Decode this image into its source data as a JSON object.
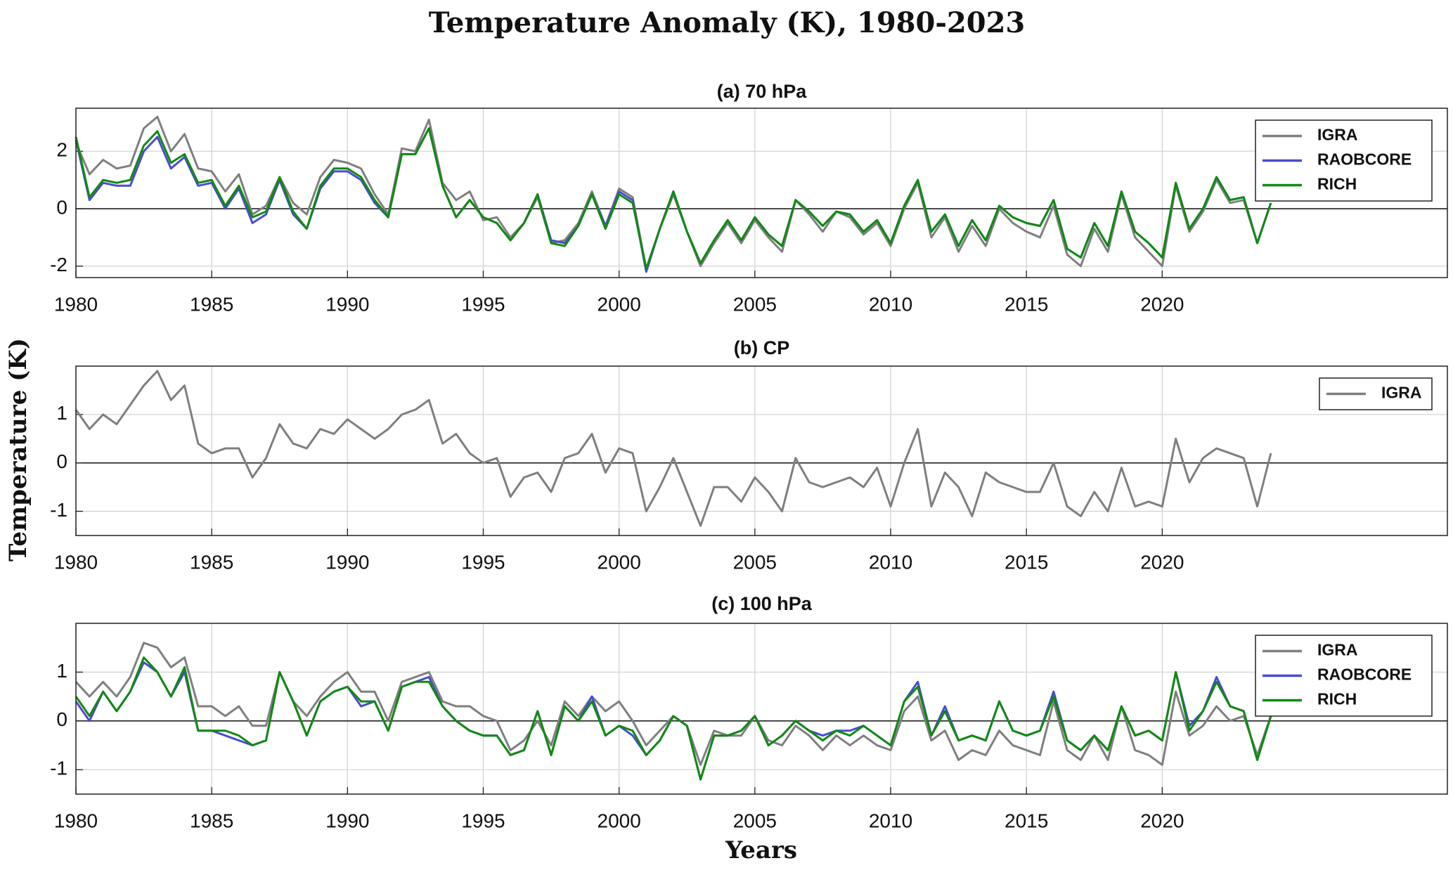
{
  "figure": {
    "title": "Temperature Anomaly (K), 1980-2023",
    "ylabel": "Temperature (K)",
    "xlabel": "Years"
  },
  "chart_data": [
    {
      "type": "line",
      "title": "(a) 70 hPa",
      "grid": true,
      "zero_line": true,
      "legend": "upper right",
      "xlim": [
        1980,
        2030.5
      ],
      "xticks": [
        1980,
        1985,
        1990,
        1995,
        2000,
        2005,
        2010,
        2015,
        2020
      ],
      "ylim": [
        -2.4,
        3.5
      ],
      "yticks": [
        -2,
        0,
        2
      ],
      "x": [
        1980,
        1980.5,
        1981,
        1981.5,
        1982,
        1982.5,
        1983,
        1983.5,
        1984,
        1984.5,
        1985,
        1985.5,
        1986,
        1986.5,
        1987,
        1987.5,
        1988,
        1988.5,
        1989,
        1989.5,
        1990,
        1990.5,
        1991,
        1991.5,
        1992,
        1992.5,
        1993,
        1993.5,
        1994,
        1994.5,
        1995,
        1995.5,
        1996,
        1996.5,
        1997,
        1997.5,
        1998,
        1998.5,
        1999,
        1999.5,
        2000,
        2000.5,
        2001,
        2001.5,
        2002,
        2002.5,
        2003,
        2003.5,
        2004,
        2004.5,
        2005,
        2005.5,
        2006,
        2006.5,
        2007,
        2007.5,
        2008,
        2008.5,
        2009,
        2009.5,
        2010,
        2010.5,
        2011,
        2011.5,
        2012,
        2012.5,
        2013,
        2013.5,
        2014,
        2014.5,
        2015,
        2015.5,
        2016,
        2016.5,
        2017,
        2017.5,
        2018,
        2018.5,
        2019,
        2019.5,
        2020,
        2020.5,
        2021,
        2021.5,
        2022,
        2022.5,
        2023,
        2023.5,
        2024
      ],
      "series": [
        {
          "name": "IGRA",
          "color": "#7f7f7f",
          "values": [
            2.3,
            1.2,
            1.7,
            1.4,
            1.5,
            2.8,
            3.2,
            2.0,
            2.6,
            1.4,
            1.3,
            0.6,
            1.2,
            -0.2,
            0.1,
            1.1,
            0.2,
            -0.2,
            1.1,
            1.7,
            1.6,
            1.4,
            0.5,
            -0.2,
            2.1,
            2.0,
            3.1,
            0.9,
            0.3,
            0.6,
            -0.4,
            -0.3,
            -1.0,
            -0.5,
            0.4,
            -1.2,
            -1.1,
            -0.5,
            0.6,
            -0.6,
            0.7,
            0.4,
            -2.1,
            -0.7,
            0.5,
            -0.8,
            -2.0,
            -1.2,
            -0.5,
            -1.2,
            -0.4,
            -1.0,
            -1.5,
            0.3,
            -0.2,
            -0.8,
            -0.1,
            -0.3,
            -0.9,
            -0.5,
            -1.3,
            0.0,
            0.9,
            -1.0,
            -0.3,
            -1.5,
            -0.6,
            -1.3,
            0.0,
            -0.5,
            -0.8,
            -1.0,
            0.1,
            -1.6,
            -2.0,
            -0.7,
            -1.5,
            0.5,
            -1.0,
            -1.5,
            -2.0,
            0.8,
            -0.8,
            -0.1,
            1.0,
            0.2,
            0.3,
            -1.2,
            0.2
          ]
        },
        {
          "name": "RAOBCORE",
          "color": "#4b4bcf",
          "values": [
            2.4,
            0.3,
            0.9,
            0.8,
            0.8,
            2.0,
            2.5,
            1.4,
            1.8,
            0.8,
            0.9,
            0.0,
            0.7,
            -0.5,
            -0.2,
            1.0,
            -0.2,
            -0.7,
            0.7,
            1.3,
            1.3,
            1.0,
            0.2,
            -0.3,
            1.9,
            1.9,
            2.8,
            0.8,
            -0.3,
            0.3,
            -0.3,
            -0.5,
            -1.1,
            -0.5,
            0.5,
            -1.1,
            -1.2,
            -0.6,
            0.5,
            -0.6,
            0.6,
            0.3,
            -2.2,
            -0.7,
            0.6,
            -0.8,
            -1.9,
            -1.1,
            -0.4,
            -1.1,
            -0.3,
            -0.9,
            -1.3,
            0.3,
            -0.1,
            -0.6,
            -0.1,
            -0.2,
            -0.8,
            -0.4,
            -1.2,
            0.1,
            1.0,
            -0.8,
            -0.2,
            -1.3,
            -0.4,
            -1.1,
            0.1,
            -0.3,
            -0.5,
            -0.6,
            0.3,
            -1.4,
            -1.7,
            -0.5,
            -1.3,
            0.6,
            -0.8,
            -1.2,
            -1.7,
            0.9,
            -0.7,
            0.0,
            1.1,
            0.3,
            0.4,
            -1.2,
            0.2
          ]
        },
        {
          "name": "RICH",
          "color": "#118a11",
          "values": [
            2.5,
            0.4,
            1.0,
            0.9,
            1.0,
            2.2,
            2.7,
            1.6,
            1.9,
            0.9,
            1.0,
            0.1,
            0.8,
            -0.3,
            -0.1,
            1.1,
            -0.1,
            -0.7,
            0.8,
            1.4,
            1.4,
            1.1,
            0.3,
            -0.3,
            1.9,
            1.9,
            2.8,
            0.8,
            -0.3,
            0.3,
            -0.3,
            -0.5,
            -1.1,
            -0.5,
            0.5,
            -1.2,
            -1.3,
            -0.6,
            0.5,
            -0.7,
            0.5,
            0.2,
            -2.1,
            -0.7,
            0.6,
            -0.8,
            -1.9,
            -1.1,
            -0.4,
            -1.1,
            -0.3,
            -0.9,
            -1.3,
            0.3,
            -0.1,
            -0.6,
            -0.1,
            -0.2,
            -0.8,
            -0.4,
            -1.2,
            0.1,
            1.0,
            -0.8,
            -0.2,
            -1.3,
            -0.4,
            -1.1,
            0.1,
            -0.3,
            -0.5,
            -0.6,
            0.3,
            -1.4,
            -1.7,
            -0.5,
            -1.3,
            0.6,
            -0.8,
            -1.2,
            -1.7,
            0.9,
            -0.7,
            0.0,
            1.1,
            0.3,
            0.4,
            -1.2,
            0.2
          ]
        }
      ]
    },
    {
      "type": "line",
      "title": "(b) CP",
      "grid": true,
      "zero_line": true,
      "legend": "upper right",
      "xlim": [
        1980,
        2030.5
      ],
      "xticks": [
        1980,
        1985,
        1990,
        1995,
        2000,
        2005,
        2010,
        2015,
        2020
      ],
      "ylim": [
        -1.5,
        2
      ],
      "yticks": [
        -1,
        0,
        1
      ],
      "x": [
        1980,
        1980.5,
        1981,
        1981.5,
        1982,
        1982.5,
        1983,
        1983.5,
        1984,
        1984.5,
        1985,
        1985.5,
        1986,
        1986.5,
        1987,
        1987.5,
        1988,
        1988.5,
        1989,
        1989.5,
        1990,
        1990.5,
        1991,
        1991.5,
        1992,
        1992.5,
        1993,
        1993.5,
        1994,
        1994.5,
        1995,
        1995.5,
        1996,
        1996.5,
        1997,
        1997.5,
        1998,
        1998.5,
        1999,
        1999.5,
        2000,
        2000.5,
        2001,
        2001.5,
        2002,
        2002.5,
        2003,
        2003.5,
        2004,
        2004.5,
        2005,
        2005.5,
        2006,
        2006.5,
        2007,
        2007.5,
        2008,
        2008.5,
        2009,
        2009.5,
        2010,
        2010.5,
        2011,
        2011.5,
        2012,
        2012.5,
        2013,
        2013.5,
        2014,
        2014.5,
        2015,
        2015.5,
        2016,
        2016.5,
        2017,
        2017.5,
        2018,
        2018.5,
        2019,
        2019.5,
        2020,
        2020.5,
        2021,
        2021.5,
        2022,
        2022.5,
        2023,
        2023.5,
        2024
      ],
      "series": [
        {
          "name": "IGRA",
          "color": "#7f7f7f",
          "values": [
            1.1,
            0.7,
            1.0,
            0.8,
            1.2,
            1.6,
            1.9,
            1.3,
            1.6,
            0.4,
            0.2,
            0.3,
            0.3,
            -0.3,
            0.1,
            0.8,
            0.4,
            0.3,
            0.7,
            0.6,
            0.9,
            0.7,
            0.5,
            0.7,
            1.0,
            1.1,
            1.3,
            0.4,
            0.6,
            0.2,
            0.0,
            0.1,
            -0.7,
            -0.3,
            -0.2,
            -0.6,
            0.1,
            0.2,
            0.6,
            -0.2,
            0.3,
            0.2,
            -1.0,
            -0.5,
            0.1,
            -0.6,
            -1.3,
            -0.5,
            -0.5,
            -0.8,
            -0.3,
            -0.6,
            -1.0,
            0.1,
            -0.4,
            -0.5,
            -0.4,
            -0.3,
            -0.5,
            -0.1,
            -0.9,
            0.0,
            0.7,
            -0.9,
            -0.2,
            -0.5,
            -1.1,
            -0.2,
            -0.4,
            -0.5,
            -0.6,
            -0.6,
            0.0,
            -0.9,
            -1.1,
            -0.6,
            -1.0,
            -0.1,
            -0.9,
            -0.8,
            -0.9,
            0.5,
            -0.4,
            0.1,
            0.3,
            0.2,
            0.1,
            -0.9,
            0.2
          ]
        }
      ]
    },
    {
      "type": "line",
      "title": "(c) 100 hPa",
      "grid": true,
      "zero_line": true,
      "legend": "upper right",
      "xlim": [
        1980,
        2030.5
      ],
      "xticks": [
        1980,
        1985,
        1990,
        1995,
        2000,
        2005,
        2010,
        2015,
        2020
      ],
      "ylim": [
        -1.5,
        2
      ],
      "yticks": [
        -1,
        0,
        1
      ],
      "x": [
        1980,
        1980.5,
        1981,
        1981.5,
        1982,
        1982.5,
        1983,
        1983.5,
        1984,
        1984.5,
        1985,
        1985.5,
        1986,
        1986.5,
        1987,
        1987.5,
        1988,
        1988.5,
        1989,
        1989.5,
        1990,
        1990.5,
        1991,
        1991.5,
        1992,
        1992.5,
        1993,
        1993.5,
        1994,
        1994.5,
        1995,
        1995.5,
        1996,
        1996.5,
        1997,
        1997.5,
        1998,
        1998.5,
        1999,
        1999.5,
        2000,
        2000.5,
        2001,
        2001.5,
        2002,
        2002.5,
        2003,
        2003.5,
        2004,
        2004.5,
        2005,
        2005.5,
        2006,
        2006.5,
        2007,
        2007.5,
        2008,
        2008.5,
        2009,
        2009.5,
        2010,
        2010.5,
        2011,
        2011.5,
        2012,
        2012.5,
        2013,
        2013.5,
        2014,
        2014.5,
        2015,
        2015.5,
        2016,
        2016.5,
        2017,
        2017.5,
        2018,
        2018.5,
        2019,
        2019.5,
        2020,
        2020.5,
        2021,
        2021.5,
        2022,
        2022.5,
        2023,
        2023.5,
        2024
      ],
      "series": [
        {
          "name": "IGRA",
          "color": "#7f7f7f",
          "values": [
            0.8,
            0.5,
            0.8,
            0.5,
            0.9,
            1.6,
            1.5,
            1.1,
            1.3,
            0.3,
            0.3,
            0.1,
            0.3,
            -0.1,
            -0.1,
            1.0,
            0.4,
            0.1,
            0.5,
            0.8,
            1.0,
            0.6,
            0.6,
            0.0,
            0.8,
            0.9,
            1.0,
            0.4,
            0.3,
            0.3,
            0.1,
            0.0,
            -0.6,
            -0.4,
            0.0,
            -0.5,
            0.4,
            0.1,
            0.5,
            0.2,
            0.4,
            0.0,
            -0.5,
            -0.2,
            0.1,
            -0.1,
            -0.9,
            -0.2,
            -0.3,
            -0.3,
            0.1,
            -0.4,
            -0.5,
            -0.1,
            -0.3,
            -0.6,
            -0.3,
            -0.5,
            -0.3,
            -0.5,
            -0.6,
            0.2,
            0.5,
            -0.4,
            -0.2,
            -0.8,
            -0.6,
            -0.7,
            -0.2,
            -0.5,
            -0.6,
            -0.7,
            0.4,
            -0.6,
            -0.8,
            -0.3,
            -0.8,
            0.3,
            -0.6,
            -0.7,
            -0.9,
            0.6,
            -0.3,
            -0.1,
            0.3,
            0.0,
            0.1,
            -0.7,
            0.1
          ]
        },
        {
          "name": "RAOBCORE",
          "color": "#4b4bcf",
          "values": [
            0.4,
            0.0,
            0.6,
            0.2,
            0.6,
            1.2,
            1.0,
            0.5,
            1.0,
            -0.2,
            -0.2,
            -0.3,
            -0.4,
            -0.5,
            -0.4,
            1.0,
            0.4,
            -0.3,
            0.4,
            0.6,
            0.7,
            0.3,
            0.4,
            -0.2,
            0.7,
            0.8,
            0.9,
            0.3,
            0.0,
            -0.2,
            -0.3,
            -0.3,
            -0.7,
            -0.6,
            0.2,
            -0.7,
            0.3,
            0.0,
            0.5,
            -0.3,
            -0.1,
            -0.3,
            -0.7,
            -0.4,
            0.1,
            -0.1,
            -1.2,
            -0.3,
            -0.3,
            -0.2,
            0.1,
            -0.5,
            -0.3,
            0.0,
            -0.2,
            -0.3,
            -0.2,
            -0.2,
            -0.1,
            -0.3,
            -0.5,
            0.4,
            0.8,
            -0.3,
            0.3,
            -0.4,
            -0.3,
            -0.4,
            0.4,
            -0.2,
            -0.3,
            -0.2,
            0.6,
            -0.4,
            -0.6,
            -0.3,
            -0.6,
            0.3,
            -0.3,
            -0.2,
            -0.4,
            1.0,
            -0.1,
            0.2,
            0.9,
            0.3,
            0.2,
            -0.8,
            0.1
          ]
        },
        {
          "name": "RICH",
          "color": "#118a11",
          "values": [
            0.5,
            0.1,
            0.6,
            0.2,
            0.6,
            1.3,
            1.0,
            0.5,
            1.1,
            -0.2,
            -0.2,
            -0.2,
            -0.3,
            -0.5,
            -0.4,
            1.0,
            0.4,
            -0.3,
            0.4,
            0.6,
            0.7,
            0.4,
            0.4,
            -0.2,
            0.7,
            0.8,
            0.8,
            0.3,
            0.0,
            -0.2,
            -0.3,
            -0.3,
            -0.7,
            -0.6,
            0.2,
            -0.7,
            0.3,
            0.0,
            0.4,
            -0.3,
            -0.1,
            -0.2,
            -0.7,
            -0.4,
            0.1,
            -0.1,
            -1.2,
            -0.3,
            -0.3,
            -0.2,
            0.1,
            -0.5,
            -0.3,
            0.0,
            -0.2,
            -0.4,
            -0.2,
            -0.3,
            -0.1,
            -0.3,
            -0.5,
            0.4,
            0.7,
            -0.3,
            0.2,
            -0.4,
            -0.3,
            -0.4,
            0.4,
            -0.2,
            -0.3,
            -0.2,
            0.5,
            -0.4,
            -0.6,
            -0.3,
            -0.6,
            0.3,
            -0.3,
            -0.2,
            -0.4,
            1.0,
            -0.2,
            0.2,
            0.8,
            0.3,
            0.2,
            -0.8,
            0.1
          ]
        }
      ]
    }
  ]
}
